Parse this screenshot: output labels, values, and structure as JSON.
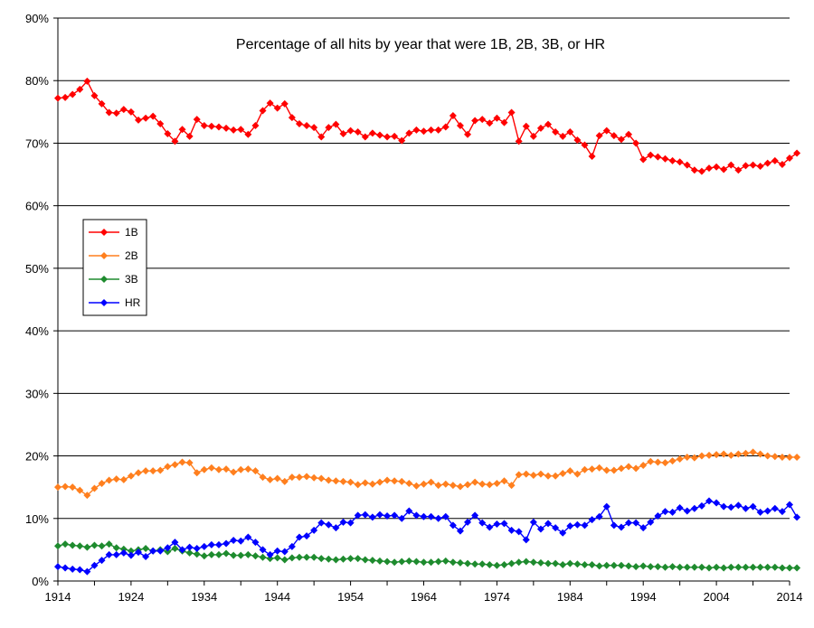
{
  "chart_data": {
    "type": "line",
    "title": "Percentage of all hits by year that were 1B, 2B, 3B, or HR",
    "xlabel": "",
    "ylabel": "",
    "x_ticks": [
      1914,
      1924,
      1934,
      1944,
      1954,
      1964,
      1974,
      1984,
      1994,
      2004,
      2014
    ],
    "y_ticks": [
      "0%",
      "10%",
      "20%",
      "30%",
      "40%",
      "50%",
      "60%",
      "70%",
      "80%",
      "90%"
    ],
    "xlim": [
      1914,
      2014
    ],
    "ylim": [
      0,
      90
    ],
    "grid": "horizontal",
    "legend_position": "left",
    "x_start": 1914,
    "series": [
      {
        "name": "1B",
        "color": "#ff0000",
        "values": [
          77.2,
          77.3,
          77.8,
          78.6,
          79.9,
          77.6,
          76.3,
          74.9,
          74.8,
          75.4,
          75.0,
          73.7,
          74.0,
          74.3,
          73.1,
          71.5,
          70.3,
          72.2,
          71.1,
          73.8,
          72.8,
          72.7,
          72.6,
          72.4,
          72.1,
          72.2,
          71.4,
          72.8,
          75.2,
          76.4,
          75.6,
          76.3,
          74.1,
          73.1,
          72.8,
          72.5,
          71.0,
          72.5,
          73.0,
          71.5,
          72.0,
          71.8,
          71.0,
          71.6,
          71.3,
          71.0,
          71.1,
          70.4,
          71.6,
          72.1,
          71.9,
          72.1,
          72.1,
          72.6,
          74.4,
          72.8,
          71.4,
          73.6,
          73.8,
          73.2,
          74.0,
          73.3,
          74.9,
          70.3,
          72.7,
          71.1,
          72.4,
          73.0,
          71.8,
          71.1,
          71.8,
          70.5,
          69.7,
          67.9,
          71.2,
          72.0,
          71.2,
          70.6,
          71.4,
          70.0,
          67.4,
          68.1,
          67.8,
          67.5,
          67.2,
          67.0,
          66.5,
          65.7,
          65.5,
          66.0,
          66.2,
          65.8,
          66.5,
          65.7,
          66.4,
          66.5,
          66.3,
          66.8,
          67.2,
          66.6,
          67.6,
          68.4
        ]
      },
      {
        "name": "2B",
        "color": "#ff7f1e",
        "values": [
          15.0,
          15.1,
          15.0,
          14.5,
          13.7,
          14.8,
          15.6,
          16.1,
          16.3,
          16.2,
          16.8,
          17.3,
          17.6,
          17.6,
          17.7,
          18.3,
          18.6,
          19.0,
          18.9,
          17.3,
          17.8,
          18.1,
          17.8,
          17.9,
          17.4,
          17.8,
          17.9,
          17.6,
          16.6,
          16.2,
          16.4,
          15.9,
          16.6,
          16.6,
          16.7,
          16.5,
          16.4,
          16.1,
          16.0,
          15.9,
          15.8,
          15.4,
          15.7,
          15.5,
          15.8,
          16.1,
          16.0,
          15.9,
          15.6,
          15.2,
          15.5,
          15.8,
          15.3,
          15.5,
          15.3,
          15.1,
          15.4,
          15.8,
          15.5,
          15.4,
          15.6,
          16.0,
          15.3,
          17.0,
          17.1,
          16.9,
          17.1,
          16.8,
          16.8,
          17.2,
          17.6,
          17.1,
          17.8,
          17.9,
          18.1,
          17.7,
          17.7,
          18.0,
          18.3,
          18.0,
          18.5,
          19.1,
          19.0,
          18.9,
          19.2,
          19.5,
          19.8,
          19.7,
          20.0,
          20.1,
          20.2,
          20.3,
          20.1,
          20.3,
          20.4,
          20.6,
          20.3,
          20.0,
          19.9,
          19.8,
          19.8,
          19.8
        ]
      },
      {
        "name": "3B",
        "color": "#1e8b2e",
        "values": [
          5.6,
          5.9,
          5.7,
          5.6,
          5.4,
          5.7,
          5.6,
          5.9,
          5.3,
          5.1,
          4.8,
          5.0,
          5.2,
          4.8,
          5.0,
          4.7,
          5.2,
          4.8,
          4.5,
          4.3,
          4.0,
          4.2,
          4.2,
          4.4,
          4.1,
          4.1,
          4.2,
          4.0,
          3.8,
          3.6,
          3.7,
          3.4,
          3.7,
          3.8,
          3.8,
          3.8,
          3.6,
          3.5,
          3.4,
          3.5,
          3.6,
          3.6,
          3.4,
          3.3,
          3.2,
          3.1,
          3.0,
          3.1,
          3.2,
          3.1,
          3.0,
          3.0,
          3.1,
          3.2,
          3.0,
          2.9,
          2.8,
          2.7,
          2.7,
          2.6,
          2.5,
          2.6,
          2.8,
          3.0,
          3.1,
          3.0,
          2.9,
          2.8,
          2.8,
          2.6,
          2.8,
          2.7,
          2.6,
          2.6,
          2.4,
          2.5,
          2.5,
          2.5,
          2.4,
          2.3,
          2.4,
          2.3,
          2.3,
          2.2,
          2.3,
          2.2,
          2.2,
          2.2,
          2.2,
          2.1,
          2.2,
          2.1,
          2.2,
          2.2,
          2.2,
          2.2,
          2.2,
          2.2,
          2.2,
          2.1,
          2.1,
          2.1
        ]
      },
      {
        "name": "HR",
        "color": "#0000ff",
        "values": [
          2.3,
          2.1,
          1.9,
          1.8,
          1.5,
          2.5,
          3.3,
          4.2,
          4.2,
          4.5,
          4.1,
          4.6,
          3.9,
          4.8,
          4.8,
          5.3,
          6.2,
          5.0,
          5.4,
          5.2,
          5.5,
          5.8,
          5.8,
          6.0,
          6.5,
          6.4,
          7.0,
          6.2,
          5.0,
          4.2,
          4.8,
          4.7,
          5.5,
          7.0,
          7.2,
          8.1,
          9.3,
          9.0,
          8.5,
          9.4,
          9.3,
          10.5,
          10.6,
          10.2,
          10.6,
          10.4,
          10.5,
          10.0,
          11.2,
          10.5,
          10.3,
          10.3,
          10.0,
          10.3,
          8.9,
          8.0,
          9.4,
          10.5,
          9.3,
          8.6,
          9.1,
          9.2,
          8.1,
          7.9,
          6.6,
          9.4,
          8.3,
          9.2,
          8.5,
          7.7,
          8.8,
          9.0,
          8.9,
          9.8,
          10.3,
          11.9,
          8.9,
          8.6,
          9.3,
          9.3,
          8.5,
          9.4,
          10.4,
          11.1,
          11.0,
          11.7,
          11.2,
          11.6,
          12.0,
          12.8,
          12.5,
          11.9,
          11.8,
          12.1,
          11.6,
          11.9,
          11.0,
          11.2,
          11.6,
          11.1,
          12.2,
          10.2
        ]
      }
    ]
  }
}
